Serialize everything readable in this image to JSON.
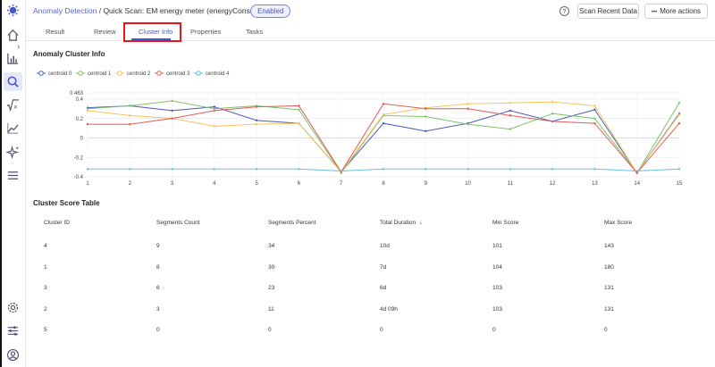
{
  "breadcrumb": {
    "link": "Anomaly Detection",
    "separator": " / ",
    "current": "Quick Scan: EM energy meter (energyConsumption)"
  },
  "status_badge": "Enabled",
  "header": {
    "help_icon": "question-circle-icon",
    "scan_button": "Scan Recent Data",
    "more_button": "More actions",
    "more_button_prefix": "•••"
  },
  "tabs": [
    {
      "label": "Result"
    },
    {
      "label": "Review"
    },
    {
      "label": "Cluster Info",
      "active": true
    },
    {
      "label": "Properties"
    },
    {
      "label": "Tasks"
    }
  ],
  "sidebar": {
    "icons": [
      "home-icon",
      "expand-chevron-icon",
      "bar-chart-icon",
      "search-icon",
      "sqrt-function-icon",
      "trend-line-icon",
      "sparkle-icon",
      "menu-icon",
      "settings-gear-icon",
      "sliders-icon",
      "user-icon"
    ]
  },
  "cluster_info_title": "Anomaly Cluster Info",
  "cluster_table_title": "Cluster Score Table",
  "chart_data": {
    "type": "line",
    "x": [
      1,
      2,
      3,
      4,
      5,
      6,
      7,
      8,
      9,
      10,
      11,
      12,
      13,
      14,
      15
    ],
    "ylim": [
      -0.4,
      0.463
    ],
    "yticks": [
      -0.4,
      -0.2,
      0,
      0.2,
      0.4,
      0.463
    ],
    "ytick_labels": [
      "-0.4",
      "-0.2",
      "0",
      "0.2",
      "0.4",
      "0.463"
    ],
    "grid": true,
    "legend_position": "top-left",
    "series": [
      {
        "name": "centroid 0",
        "color": "#4a5bb8",
        "values": [
          0.31,
          0.33,
          0.28,
          0.32,
          0.18,
          0.15,
          -0.35,
          0.15,
          0.07,
          0.15,
          0.28,
          0.17,
          0.29,
          -0.36,
          0.25
        ]
      },
      {
        "name": "centroid 1",
        "color": "#7cc46a",
        "values": [
          0.3,
          0.33,
          0.38,
          0.3,
          0.33,
          0.29,
          -0.36,
          0.23,
          0.22,
          0.14,
          0.09,
          0.25,
          0.2,
          -0.36,
          0.36
        ]
      },
      {
        "name": "centroid 2",
        "color": "#f2c35d",
        "values": [
          0.28,
          0.23,
          0.2,
          0.12,
          0.14,
          0.15,
          -0.35,
          0.24,
          0.31,
          0.35,
          0.36,
          0.37,
          0.33,
          -0.36,
          0.24
        ]
      },
      {
        "name": "centroid 3",
        "color": "#e05a57",
        "values": [
          0.14,
          0.14,
          0.2,
          0.28,
          0.32,
          0.33,
          -0.35,
          0.35,
          0.3,
          0.3,
          0.23,
          0.17,
          0.15,
          -0.36,
          0.15
        ]
      },
      {
        "name": "centroid 4",
        "color": "#63c1e0",
        "values": [
          -0.32,
          -0.32,
          -0.32,
          -0.32,
          -0.32,
          -0.32,
          -0.34,
          -0.32,
          -0.32,
          -0.32,
          -0.32,
          -0.32,
          -0.32,
          -0.34,
          -0.32
        ]
      }
    ]
  },
  "table": {
    "columns": [
      "Cluster ID",
      "Segments Count",
      "Segments Percent",
      "Total Duration",
      "Min Score",
      "Max Score"
    ],
    "sort_icon": "arrow-down-icon",
    "rows": [
      [
        "4",
        "9",
        "34",
        "10d",
        "101",
        "143"
      ],
      [
        "1",
        "8",
        "30",
        "7d",
        "104",
        "180"
      ],
      [
        "3",
        "6",
        "23",
        "6d",
        "103",
        "131"
      ],
      [
        "2",
        "3",
        "11",
        "4d 09h",
        "103",
        "131"
      ],
      [
        "5",
        "0",
        "0",
        "0",
        "0",
        "0"
      ]
    ]
  }
}
